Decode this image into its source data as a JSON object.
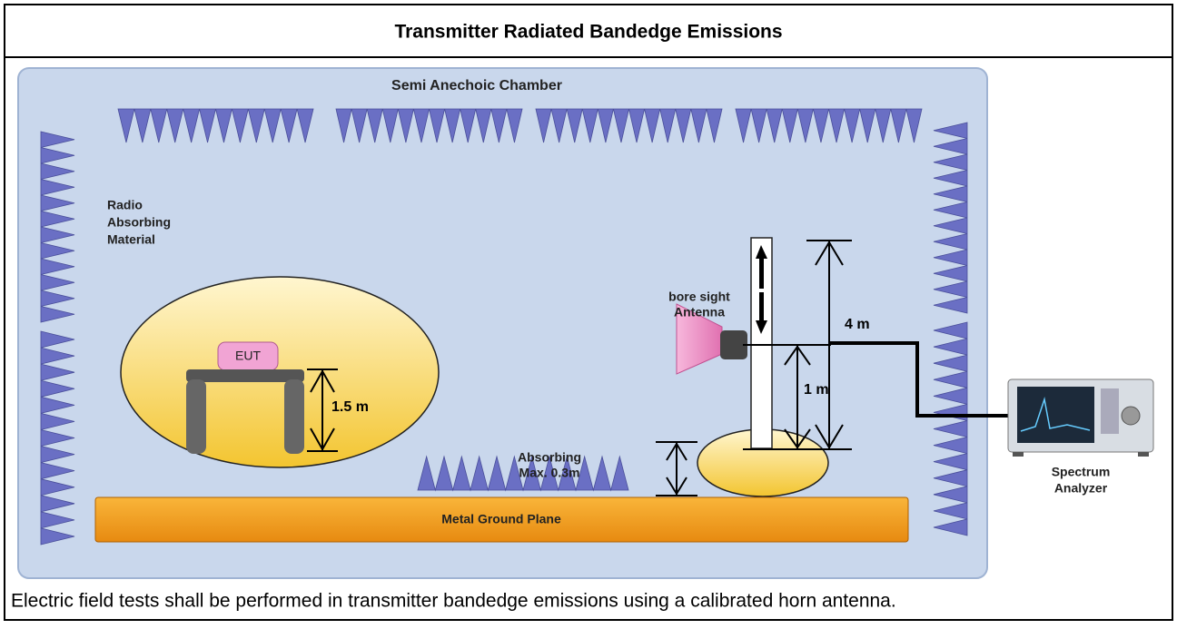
{
  "title": "Transmitter Radiated Bandedge Emissions",
  "diagram": {
    "chamber_label": "Semi Anechoic Chamber",
    "absorber_label": [
      "Radio",
      "Absorbing",
      "Material"
    ],
    "eut_label": "EUT",
    "eut_height": "1.5 m",
    "floor_absorber_label": [
      "Absorbing",
      "Max. 0.3m"
    ],
    "antenna_label": [
      "bore sight",
      "Antenna"
    ],
    "mast_max": "4 m",
    "mast_min": "1 m",
    "ground_plane_label": "Metal Ground Plane",
    "analyzer_label": [
      "Spectrum",
      "Analyzer"
    ]
  },
  "caption": "Electric field tests shall be performed in transmitter bandedge emissions using a calibrated horn antenna."
}
